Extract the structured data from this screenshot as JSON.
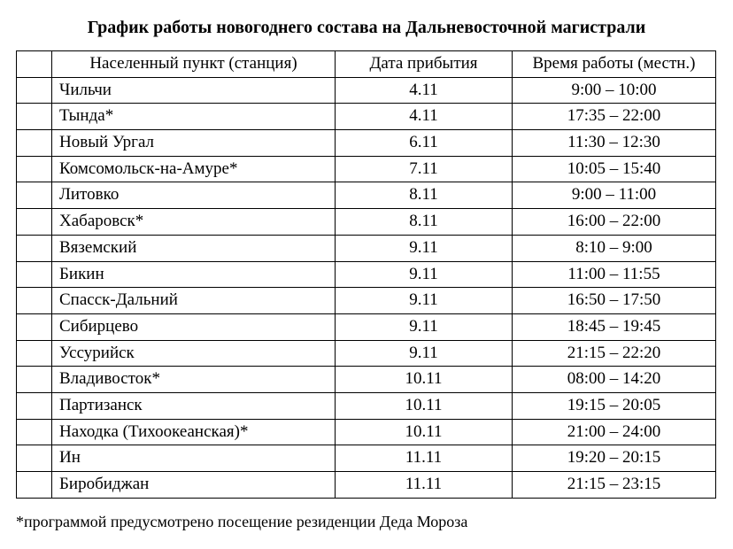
{
  "title": "График работы новогоднего состава на Дальневосточной магистрали",
  "columns": {
    "idx": "",
    "name": "Населенный пункт (станция)",
    "date": "Дата прибытия",
    "time": "Время работы (местн.)"
  },
  "rows": [
    {
      "name": "Чильчи",
      "date": "4.11",
      "time": "9:00 – 10:00"
    },
    {
      "name": "Тында*",
      "date": "4.11",
      "time": "17:35 – 22:00"
    },
    {
      "name": "Новый Ургал",
      "date": "6.11",
      "time": "11:30 – 12:30"
    },
    {
      "name": "Комсомольск-на-Амуре*",
      "date": "7.11",
      "time": "10:05 – 15:40"
    },
    {
      "name": "Литовко",
      "date": "8.11",
      "time": "9:00 – 11:00"
    },
    {
      "name": "Хабаровск*",
      "date": "8.11",
      "time": "16:00 – 22:00"
    },
    {
      "name": "Вяземский",
      "date": "9.11",
      "time": "8:10 – 9:00"
    },
    {
      "name": "Бикин",
      "date": "9.11",
      "time": "11:00 – 11:55"
    },
    {
      "name": "Спасск-Дальний",
      "date": "9.11",
      "time": "16:50 – 17:50"
    },
    {
      "name": "Сибирцево",
      "date": "9.11",
      "time": "18:45 – 19:45"
    },
    {
      "name": "Уссурийск",
      "date": "9.11",
      "time": "21:15 – 22:20"
    },
    {
      "name": "Владивосток*",
      "date": "10.11",
      "time": "08:00 – 14:20"
    },
    {
      "name": "Партизанск",
      "date": "10.11",
      "time": "19:15 – 20:05"
    },
    {
      "name": "Находка (Тихоокеанская)*",
      "date": "10.11",
      "time": "21:00 – 24:00"
    },
    {
      "name": "Ин",
      "date": "11.11",
      "time": "19:20 – 20:15"
    },
    {
      "name": "Биробиджан",
      "date": "11.11",
      "time": "21:15 – 23:15"
    }
  ],
  "footnote": "*программой предусмотрено посещение резиденции Деда Мороза"
}
